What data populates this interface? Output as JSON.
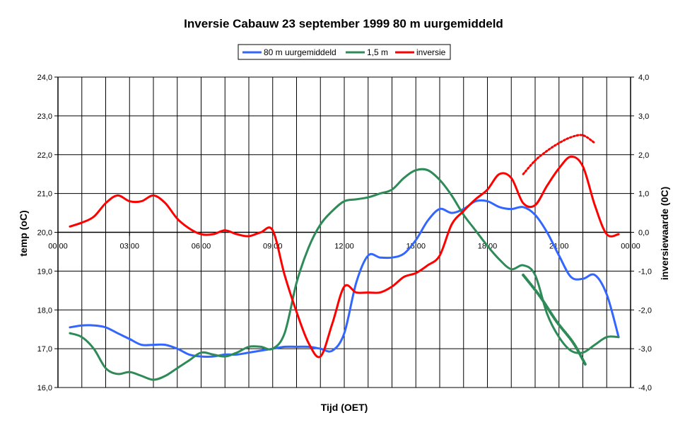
{
  "chart_data": {
    "type": "line",
    "title": "Inversie Cabauw 23 september 1999 80 m uurgemiddeld",
    "xlabel": "Tijd (OET)",
    "ylabel_left": "temp (oC)",
    "ylabel_right": "inversiewaarde (0C)",
    "x_unit": "hour",
    "xlim": [
      0,
      24
    ],
    "ylim_left": [
      16,
      24
    ],
    "ylim_right": [
      -4,
      4
    ],
    "x_tick_labels": [
      "00:00",
      "03:00",
      "06:00",
      "09:00",
      "12:00",
      "15:00",
      "18:00",
      "21:00",
      "00:00"
    ],
    "x_tick_values": [
      0,
      3,
      6,
      9,
      12,
      15,
      18,
      21,
      24
    ],
    "y_left_tick_labels": [
      "16,0",
      "17,0",
      "18,0",
      "19,0",
      "20,0",
      "21,0",
      "22,0",
      "23,0",
      "24,0"
    ],
    "y_left_tick_values": [
      16,
      17,
      18,
      19,
      20,
      21,
      22,
      23,
      24
    ],
    "y_right_tick_labels": [
      "-4,0",
      "-3,0",
      "-2,0",
      "-1,0",
      "0,0",
      "1,0",
      "2,0",
      "3,0",
      "4,0"
    ],
    "y_right_tick_values": [
      -4,
      -3,
      -2,
      -1,
      0,
      1,
      2,
      3,
      4
    ],
    "grid_vertical": true,
    "grid_horizontal": true,
    "legend_position": "top",
    "series": [
      {
        "name": "80 m uurgemiddeld",
        "axis": "left",
        "color": "#3366ff",
        "x": [
          0.5,
          1.0,
          1.5,
          2.0,
          2.5,
          3.0,
          3.5,
          4.0,
          4.5,
          5.0,
          5.5,
          6.0,
          6.5,
          7.0,
          7.5,
          8.0,
          8.5,
          9.0,
          9.5,
          10.0,
          10.5,
          11.0,
          11.5,
          12.0,
          12.5,
          13.0,
          13.5,
          14.0,
          14.5,
          15.0,
          15.5,
          16.0,
          16.5,
          17.0,
          17.5,
          18.0,
          18.5,
          19.0,
          19.5,
          20.0,
          20.5,
          21.0,
          21.5,
          22.0,
          22.5,
          23.0,
          23.5
        ],
        "y": [
          17.55,
          17.6,
          17.6,
          17.55,
          17.4,
          17.25,
          17.1,
          17.1,
          17.1,
          17.0,
          16.85,
          16.8,
          16.8,
          16.85,
          16.85,
          16.9,
          16.95,
          17.0,
          17.05,
          17.05,
          17.05,
          17.0,
          16.95,
          17.4,
          18.7,
          19.4,
          19.35,
          19.35,
          19.45,
          19.8,
          20.3,
          20.6,
          20.5,
          20.6,
          20.8,
          20.8,
          20.65,
          20.6,
          20.65,
          20.45,
          20.0,
          19.4,
          18.85,
          18.8,
          18.9,
          18.4,
          17.3
        ]
      },
      {
        "name": "1,5 m",
        "axis": "left",
        "color": "#2e8b57",
        "x": [
          0.5,
          1.0,
          1.5,
          2.0,
          2.5,
          3.0,
          3.5,
          4.0,
          4.5,
          5.0,
          5.5,
          6.0,
          6.5,
          7.0,
          7.5,
          8.0,
          8.5,
          9.0,
          9.5,
          10.0,
          10.5,
          11.0,
          11.5,
          12.0,
          12.5,
          13.0,
          13.5,
          14.0,
          14.5,
          15.0,
          15.5,
          16.0,
          16.5,
          17.0,
          17.5,
          18.0,
          18.5,
          19.0,
          19.5,
          20.0,
          20.5,
          21.0,
          21.5,
          22.0,
          22.5,
          23.0,
          23.5
        ],
        "y": [
          17.4,
          17.3,
          17.0,
          16.5,
          16.35,
          16.4,
          16.3,
          16.2,
          16.3,
          16.5,
          16.7,
          16.9,
          16.85,
          16.8,
          16.9,
          17.05,
          17.05,
          17.0,
          17.4,
          18.7,
          19.6,
          20.2,
          20.55,
          20.8,
          20.85,
          20.9,
          21.0,
          21.1,
          21.4,
          21.6,
          21.6,
          21.35,
          20.95,
          20.45,
          20.05,
          19.65,
          19.3,
          19.05,
          19.15,
          18.9,
          17.9,
          17.3,
          16.95,
          16.9,
          17.1,
          17.3,
          17.3
        ]
      },
      {
        "name": "inversie",
        "axis": "right",
        "color": "#ff0000",
        "x": [
          0.5,
          1.0,
          1.5,
          2.0,
          2.5,
          3.0,
          3.5,
          4.0,
          4.5,
          5.0,
          5.5,
          6.0,
          6.5,
          7.0,
          7.5,
          8.0,
          8.5,
          9.0,
          9.5,
          10.0,
          10.5,
          11.0,
          11.5,
          12.0,
          12.5,
          13.0,
          13.5,
          14.0,
          14.5,
          15.0,
          15.5,
          16.0,
          16.5,
          17.0,
          17.5,
          18.0,
          18.5,
          19.0,
          19.5,
          20.0,
          20.5,
          21.0,
          21.5,
          22.0,
          22.5,
          23.0,
          23.5
        ],
        "y": [
          0.15,
          0.25,
          0.4,
          0.75,
          0.95,
          0.8,
          0.8,
          0.95,
          0.75,
          0.35,
          0.1,
          -0.05,
          -0.05,
          0.05,
          -0.05,
          -0.1,
          0.0,
          0.05,
          -1.1,
          -2.05,
          -2.85,
          -3.2,
          -2.35,
          -1.4,
          -1.55,
          -1.55,
          -1.55,
          -1.4,
          -1.15,
          -1.05,
          -0.85,
          -0.6,
          0.2,
          0.55,
          0.85,
          1.1,
          1.5,
          1.4,
          0.75,
          0.7,
          1.2,
          1.65,
          1.95,
          1.7,
          0.7,
          -0.05,
          -0.05
        ]
      }
    ]
  }
}
